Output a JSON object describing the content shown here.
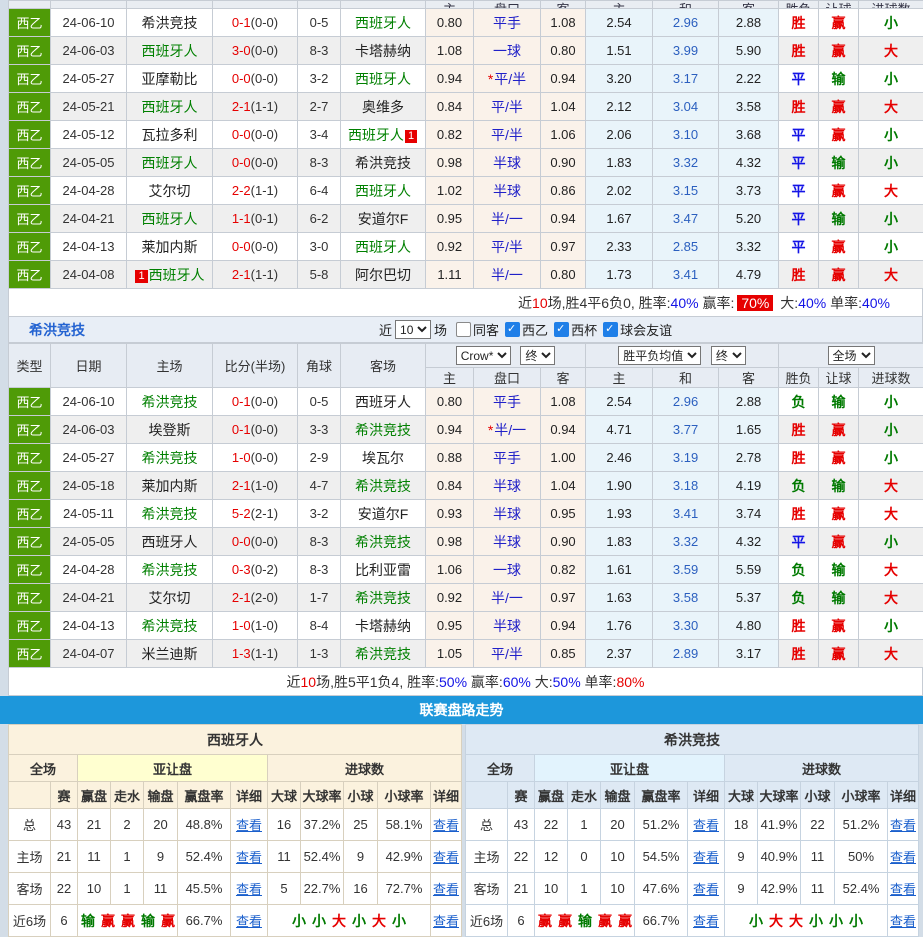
{
  "table1": {
    "clip_header": [
      "主",
      "盘口",
      "客",
      "主",
      "和",
      "客",
      "胜负",
      "让球",
      "进球数"
    ],
    "rows": [
      {
        "lg": "西乙",
        "dt": "24-06-10",
        "hm": {
          "t": "希洪竞技",
          "g": false
        },
        "sc": "0-1",
        "hf": "(0-0)",
        "cn": "0-5",
        "aw": {
          "t": "西班牙人",
          "g": true
        },
        "h": "0.80",
        "hc": "平手",
        "star": false,
        "a": "1.08",
        "eh": "2.54",
        "ed": "2.96",
        "ea": "2.88",
        "r": "胜",
        "rb": "赢",
        "gl": "小"
      },
      {
        "lg": "西乙",
        "dt": "24-06-03",
        "hm": {
          "t": "西班牙人",
          "g": true
        },
        "sc": "3-0",
        "hf": "(0-0)",
        "cn": "8-3",
        "aw": {
          "t": "卡塔赫纳",
          "g": false
        },
        "h": "1.08",
        "hc": "一球",
        "star": false,
        "a": "0.80",
        "eh": "1.51",
        "ed": "3.99",
        "ea": "5.90",
        "r": "胜",
        "rb": "赢",
        "gl": "大"
      },
      {
        "lg": "西乙",
        "dt": "24-05-27",
        "hm": {
          "t": "亚摩勒比",
          "g": false
        },
        "sc": "0-0",
        "hf": "(0-0)",
        "cn": "3-2",
        "aw": {
          "t": "西班牙人",
          "g": true
        },
        "h": "0.94",
        "hc": "平/半",
        "star": true,
        "a": "0.94",
        "eh": "3.20",
        "ed": "3.17",
        "ea": "2.22",
        "r": "平",
        "rb": "输",
        "gl": "小"
      },
      {
        "lg": "西乙",
        "dt": "24-05-21",
        "hm": {
          "t": "西班牙人",
          "g": true
        },
        "sc": "2-1",
        "hf": "(1-1)",
        "cn": "2-7",
        "aw": {
          "t": "奥维多",
          "g": false
        },
        "h": "0.84",
        "hc": "平/半",
        "star": false,
        "a": "1.04",
        "eh": "2.12",
        "ed": "3.04",
        "ea": "3.58",
        "r": "胜",
        "rb": "赢",
        "gl": "大"
      },
      {
        "lg": "西乙",
        "dt": "24-05-12",
        "hm": {
          "t": "瓦拉多利",
          "g": false
        },
        "sc": "0-0",
        "hf": "(0-0)",
        "cn": "3-4",
        "aw": {
          "t": "西班牙人",
          "g": true,
          "badge": "1",
          "badgePos": "after"
        },
        "h": "0.82",
        "hc": "平/半",
        "star": false,
        "a": "1.06",
        "eh": "2.06",
        "ed": "3.10",
        "ea": "3.68",
        "r": "平",
        "rb": "赢",
        "gl": "小"
      },
      {
        "lg": "西乙",
        "dt": "24-05-05",
        "hm": {
          "t": "西班牙人",
          "g": true
        },
        "sc": "0-0",
        "hf": "(0-0)",
        "cn": "8-3",
        "aw": {
          "t": "希洪竞技",
          "g": false
        },
        "h": "0.98",
        "hc": "半球",
        "star": false,
        "a": "0.90",
        "eh": "1.83",
        "ed": "3.32",
        "ea": "4.32",
        "r": "平",
        "rb": "输",
        "gl": "小"
      },
      {
        "lg": "西乙",
        "dt": "24-04-28",
        "hm": {
          "t": "艾尔切",
          "g": false
        },
        "sc": "2-2",
        "hf": "(1-1)",
        "cn": "6-4",
        "aw": {
          "t": "西班牙人",
          "g": true
        },
        "h": "1.02",
        "hc": "半球",
        "star": false,
        "a": "0.86",
        "eh": "2.02",
        "ed": "3.15",
        "ea": "3.73",
        "r": "平",
        "rb": "赢",
        "gl": "大"
      },
      {
        "lg": "西乙",
        "dt": "24-04-21",
        "hm": {
          "t": "西班牙人",
          "g": true
        },
        "sc": "1-1",
        "hf": "(0-1)",
        "cn": "6-2",
        "aw": {
          "t": "安道尔F",
          "g": false
        },
        "h": "0.95",
        "hc": "半/一",
        "star": false,
        "a": "0.94",
        "eh": "1.67",
        "ed": "3.47",
        "ea": "5.20",
        "r": "平",
        "rb": "输",
        "gl": "小"
      },
      {
        "lg": "西乙",
        "dt": "24-04-13",
        "hm": {
          "t": "莱加内斯",
          "g": false
        },
        "sc": "0-0",
        "hf": "(0-0)",
        "cn": "3-0",
        "aw": {
          "t": "西班牙人",
          "g": true
        },
        "h": "0.92",
        "hc": "平/半",
        "star": false,
        "a": "0.97",
        "eh": "2.33",
        "ed": "2.85",
        "ea": "3.32",
        "r": "平",
        "rb": "赢",
        "gl": "小"
      },
      {
        "lg": "西乙",
        "dt": "24-04-08",
        "hm": {
          "t": "西班牙人",
          "g": true,
          "badge": "1",
          "badgePos": "before"
        },
        "sc": "2-1",
        "hf": "(1-1)",
        "cn": "5-8",
        "aw": {
          "t": "阿尔巴切",
          "g": false
        },
        "h": "1.11",
        "hc": "半/一",
        "star": false,
        "a": "0.80",
        "eh": "1.73",
        "ed": "3.41",
        "ea": "4.79",
        "r": "胜",
        "rb": "赢",
        "gl": "大"
      }
    ],
    "summary_parts": [
      [
        "近",
        "k"
      ],
      [
        "10",
        "red"
      ],
      [
        "场,胜4平6负0, 胜率:",
        "k"
      ],
      [
        "40%",
        "blue"
      ],
      [
        " 赢率:",
        "k"
      ],
      [
        "70%",
        "redbg"
      ],
      [
        " 大:",
        "k"
      ],
      [
        "40%",
        "blue"
      ],
      [
        " 单率:",
        "k"
      ],
      [
        "40%",
        "blue"
      ]
    ]
  },
  "section2": {
    "title": "希洪竞技",
    "filter": {
      "near": "近",
      "count": "10",
      "unit": "场",
      "checkboxes": [
        {
          "label": "同客",
          "checked": false
        },
        {
          "label": "西乙",
          "checked": true
        },
        {
          "label": "西杯",
          "checked": true
        },
        {
          "label": "球会友谊",
          "checked": true
        }
      ]
    },
    "dropdowns": {
      "odds_company": "Crow*",
      "odds_stage": "终",
      "europe_mean": "胜平负均值",
      "europe_stage": "终",
      "scope": "全场"
    },
    "header_left": [
      "类型",
      "日期",
      "主场",
      "比分(半场)",
      "角球",
      "客场"
    ],
    "header_sub": [
      "主",
      "盘口",
      "客",
      "主",
      "和",
      "客",
      "胜负",
      "让球",
      "进球数"
    ],
    "rows": [
      {
        "lg": "西乙",
        "dt": "24-06-10",
        "hm": {
          "t": "希洪竞技",
          "g": true
        },
        "sc": "0-1",
        "hf": "(0-0)",
        "cn": "0-5",
        "aw": {
          "t": "西班牙人",
          "g": false
        },
        "h": "0.80",
        "hc": "平手",
        "star": false,
        "a": "1.08",
        "eh": "2.54",
        "ed": "2.96",
        "ea": "2.88",
        "r": "负",
        "rb": "输",
        "gl": "小"
      },
      {
        "lg": "西乙",
        "dt": "24-06-03",
        "hm": {
          "t": "埃登斯",
          "g": false
        },
        "sc": "0-1",
        "hf": "(0-0)",
        "cn": "3-3",
        "aw": {
          "t": "希洪竞技",
          "g": true
        },
        "h": "0.94",
        "hc": "半/一",
        "star": true,
        "a": "0.94",
        "eh": "4.71",
        "ed": "3.77",
        "ea": "1.65",
        "r": "胜",
        "rb": "赢",
        "gl": "小"
      },
      {
        "lg": "西乙",
        "dt": "24-05-27",
        "hm": {
          "t": "希洪竞技",
          "g": true
        },
        "sc": "1-0",
        "hf": "(0-0)",
        "cn": "2-9",
        "aw": {
          "t": "埃瓦尔",
          "g": false
        },
        "h": "0.88",
        "hc": "平手",
        "star": false,
        "a": "1.00",
        "eh": "2.46",
        "ed": "3.19",
        "ea": "2.78",
        "r": "胜",
        "rb": "赢",
        "gl": "小"
      },
      {
        "lg": "西乙",
        "dt": "24-05-18",
        "hm": {
          "t": "莱加内斯",
          "g": false
        },
        "sc": "2-1",
        "hf": "(1-0)",
        "cn": "4-7",
        "aw": {
          "t": "希洪竞技",
          "g": true
        },
        "h": "0.84",
        "hc": "半球",
        "star": false,
        "a": "1.04",
        "eh": "1.90",
        "ed": "3.18",
        "ea": "4.19",
        "r": "负",
        "rb": "输",
        "gl": "大"
      },
      {
        "lg": "西乙",
        "dt": "24-05-11",
        "hm": {
          "t": "希洪竞技",
          "g": true
        },
        "sc": "5-2",
        "hf": "(2-1)",
        "cn": "3-2",
        "aw": {
          "t": "安道尔F",
          "g": false
        },
        "h": "0.93",
        "hc": "半球",
        "star": false,
        "a": "0.95",
        "eh": "1.93",
        "ed": "3.41",
        "ea": "3.74",
        "r": "胜",
        "rb": "赢",
        "gl": "大"
      },
      {
        "lg": "西乙",
        "dt": "24-05-05",
        "hm": {
          "t": "西班牙人",
          "g": false
        },
        "sc": "0-0",
        "hf": "(0-0)",
        "cn": "8-3",
        "aw": {
          "t": "希洪竞技",
          "g": true
        },
        "h": "0.98",
        "hc": "半球",
        "star": false,
        "a": "0.90",
        "eh": "1.83",
        "ed": "3.32",
        "ea": "4.32",
        "r": "平",
        "rb": "赢",
        "gl": "小"
      },
      {
        "lg": "西乙",
        "dt": "24-04-28",
        "hm": {
          "t": "希洪竞技",
          "g": true
        },
        "sc": "0-3",
        "hf": "(0-2)",
        "cn": "8-3",
        "aw": {
          "t": "比利亚雷",
          "g": false
        },
        "h": "1.06",
        "hc": "一球",
        "star": false,
        "a": "0.82",
        "eh": "1.61",
        "ed": "3.59",
        "ea": "5.59",
        "r": "负",
        "rb": "输",
        "gl": "大"
      },
      {
        "lg": "西乙",
        "dt": "24-04-21",
        "hm": {
          "t": "艾尔切",
          "g": false
        },
        "sc": "2-1",
        "hf": "(2-0)",
        "cn": "1-7",
        "aw": {
          "t": "希洪竞技",
          "g": true
        },
        "h": "0.92",
        "hc": "半/一",
        "star": false,
        "a": "0.97",
        "eh": "1.63",
        "ed": "3.58",
        "ea": "5.37",
        "r": "负",
        "rb": "输",
        "gl": "大"
      },
      {
        "lg": "西乙",
        "dt": "24-04-13",
        "hm": {
          "t": "希洪竞技",
          "g": true
        },
        "sc": "1-0",
        "hf": "(1-0)",
        "cn": "8-4",
        "aw": {
          "t": "卡塔赫纳",
          "g": false
        },
        "h": "0.95",
        "hc": "半球",
        "star": false,
        "a": "0.94",
        "eh": "1.76",
        "ed": "3.30",
        "ea": "4.80",
        "r": "胜",
        "rb": "赢",
        "gl": "小"
      },
      {
        "lg": "西乙",
        "dt": "24-04-07",
        "hm": {
          "t": "米兰迪斯",
          "g": false
        },
        "sc": "1-3",
        "hf": "(1-1)",
        "cn": "1-3",
        "aw": {
          "t": "希洪竞技",
          "g": true
        },
        "h": "1.05",
        "hc": "平/半",
        "star": false,
        "a": "0.85",
        "eh": "2.37",
        "ed": "2.89",
        "ea": "3.17",
        "r": "胜",
        "rb": "赢",
        "gl": "大"
      }
    ],
    "summary_parts": [
      [
        "近",
        "k"
      ],
      [
        "10",
        "red"
      ],
      [
        "场,胜5平1负4, 胜率:",
        "k"
      ],
      [
        "50%",
        "blue"
      ],
      [
        " 赢率:",
        "k"
      ],
      [
        "60%",
        "blue"
      ],
      [
        " 大:",
        "k"
      ],
      [
        "50%",
        "blue"
      ],
      [
        " 单率:",
        "k"
      ],
      [
        "80%",
        "red"
      ]
    ]
  },
  "trend": {
    "banner": "联赛盘路走势",
    "panels": [
      {
        "team": "西班牙人",
        "scope": "全场",
        "ah": "亚让盘",
        "goals": "进球数",
        "cols": [
          "",
          "赛",
          "赢盘",
          "走水",
          "输盘",
          "赢盘率",
          "详细",
          "大球",
          "大球率",
          "小球",
          "小球率",
          "详细"
        ],
        "rows": [
          {
            "label": "总",
            "cells": [
              "43",
              "21",
              "2",
              "20",
              "48.8%",
              "查看",
              "16",
              "37.2%",
              "25",
              "58.1%",
              "查看"
            ]
          },
          {
            "label": "主场",
            "cells": [
              "21",
              "11",
              "1",
              "9",
              "52.4%",
              "查看",
              "11",
              "52.4%",
              "9",
              "42.9%",
              "查看"
            ]
          },
          {
            "label": "客场",
            "cells": [
              "22",
              "10",
              "1",
              "11",
              "45.5%",
              "查看",
              "5",
              "22.7%",
              "16",
              "72.7%",
              "查看"
            ]
          },
          {
            "label": "近6场",
            "games": "6",
            "seq": [
              "输",
              "赢",
              "赢",
              "输",
              "赢",
              "赢"
            ],
            "rate": "66.7%",
            "view": "查看",
            "goals_seq": [
              "小",
              "小",
              "大",
              "小",
              "大",
              "小"
            ],
            "view2": "查看"
          }
        ]
      },
      {
        "team": "希洪竞技",
        "scope": "全场",
        "ah": "亚让盘",
        "goals": "进球数",
        "cols": [
          "",
          "赛",
          "赢盘",
          "走水",
          "输盘",
          "赢盘率",
          "详细",
          "大球",
          "大球率",
          "小球",
          "小球率",
          "详细"
        ],
        "rows": [
          {
            "label": "总",
            "cells": [
              "43",
              "22",
              "1",
              "20",
              "51.2%",
              "查看",
              "18",
              "41.9%",
              "22",
              "51.2%",
              "查看"
            ]
          },
          {
            "label": "主场",
            "cells": [
              "22",
              "12",
              "0",
              "10",
              "54.5%",
              "查看",
              "9",
              "40.9%",
              "11",
              "50%",
              "查看"
            ]
          },
          {
            "label": "客场",
            "cells": [
              "21",
              "10",
              "1",
              "10",
              "47.6%",
              "查看",
              "9",
              "42.9%",
              "11",
              "52.4%",
              "查看"
            ]
          },
          {
            "label": "近6场",
            "games": "6",
            "seq": [
              "赢",
              "赢",
              "输",
              "赢",
              "赢",
              "输"
            ],
            "rate": "66.7%",
            "view": "查看",
            "goals_seq": [
              "小",
              "大",
              "大",
              "小",
              "小",
              "小"
            ],
            "view2": "查看"
          }
        ]
      }
    ]
  },
  "colors": {
    "league_green": "#4F9B07",
    "banner_blue": "#1D97DB",
    "win_red": "#E60000",
    "draw_blue": "#1414E6",
    "lose_green": "#007A00",
    "link_blue": "#1A5FCC",
    "asian_odds_bg": "#FAF2EA",
    "euro_odds_bg": "#E9F4FA",
    "highlight_yellow": "#FFFFD0",
    "highlight_cyan": "#E2F3FD"
  }
}
